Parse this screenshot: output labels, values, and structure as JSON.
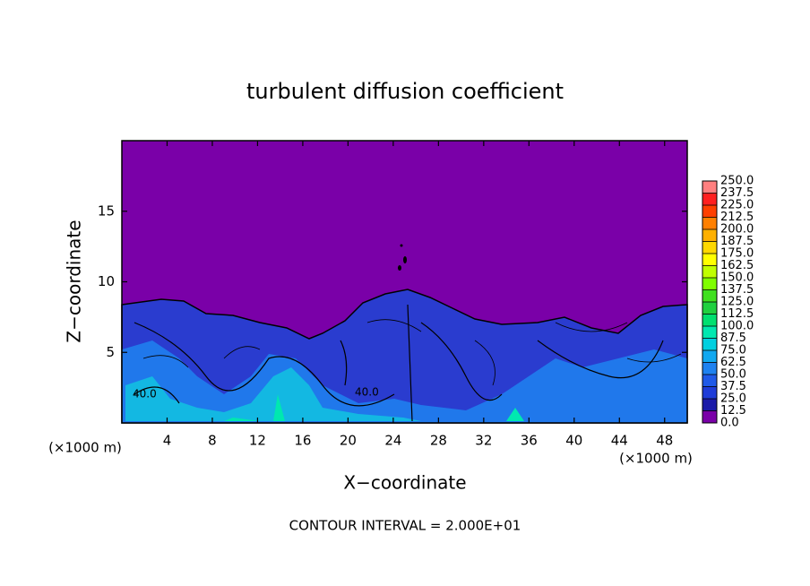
{
  "chart_data": {
    "type": "contour",
    "title": "turbulent diffusion coefficient",
    "xlabel": "X−coordinate",
    "ylabel": "Z−coordinate",
    "xunit": "(×1000 m)",
    "yunit": "(×1000 m)",
    "note": "CONTOUR INTERVAL = 2.000E+01",
    "contour_labels": [
      "40.0",
      "40.0"
    ],
    "xlim": [
      0,
      50
    ],
    "ylim": [
      0,
      20
    ],
    "xticks": [
      4,
      8,
      12,
      16,
      20,
      24,
      28,
      32,
      36,
      40,
      44,
      48
    ],
    "yticks": [
      5,
      10,
      15
    ],
    "colorbar": {
      "ticks": [
        {
          "value": 0,
          "label": "0.0"
        },
        {
          "value": 12.5,
          "label": "12.5"
        },
        {
          "value": 25,
          "label": "25.0"
        },
        {
          "value": 37.5,
          "label": "37.5"
        },
        {
          "value": 50,
          "label": "50.0"
        },
        {
          "value": 62.5,
          "label": "62.5"
        },
        {
          "value": 75,
          "label": "75.0"
        },
        {
          "value": 87.5,
          "label": "87.5"
        },
        {
          "value": 100,
          "label": "100.0"
        },
        {
          "value": 112.5,
          "label": "112.5"
        },
        {
          "value": 125,
          "label": "125.0"
        },
        {
          "value": 137.5,
          "label": "137.5"
        },
        {
          "value": 150,
          "label": "150.0"
        },
        {
          "value": 162.5,
          "label": "162.5"
        },
        {
          "value": 175,
          "label": "175.0"
        },
        {
          "value": 187.5,
          "label": "187.5"
        },
        {
          "value": 200,
          "label": "200.0"
        },
        {
          "value": 212.5,
          "label": "212.5"
        },
        {
          "value": 225,
          "label": "225.0"
        },
        {
          "value": 237.5,
          "label": "237.5"
        },
        {
          "value": 250,
          "label": "250.0"
        }
      ],
      "colors": [
        "#7a00a8",
        "#1a1aa8",
        "#1e3cd8",
        "#1f5ae8",
        "#1e82f0",
        "#10a8f0",
        "#00d0e0",
        "#00e8b0",
        "#00e070",
        "#20d040",
        "#40e020",
        "#80ff00",
        "#c0ff00",
        "#ffff00",
        "#ffd800",
        "#ffb000",
        "#ff8000",
        "#ff4000",
        "#ff2020",
        "#ff8080"
      ]
    }
  }
}
